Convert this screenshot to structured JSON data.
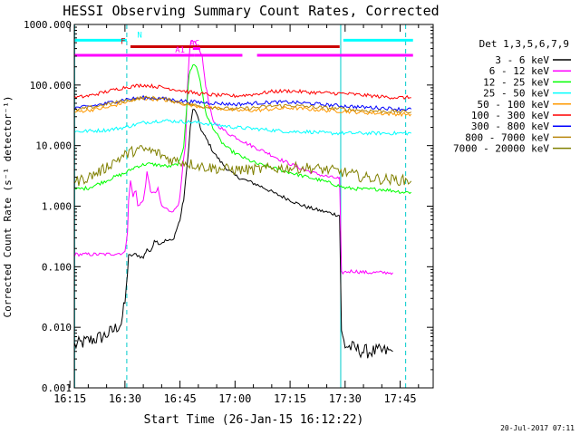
{
  "chart_data": {
    "type": "line",
    "title": "HESSI Observing Summary Count Rates, Corrected",
    "xlabel": "Start Time (26-Jan-15 16:12:22)",
    "ylabel": "Corrected Count Rate (s⁻¹ detector⁻¹)",
    "yscale": "log",
    "xlim_minutes": [
      16.2,
      114.0
    ],
    "ylim": [
      0.001,
      1000.0
    ],
    "x_ticks": [
      {
        "label": "16:15",
        "min": 15
      },
      {
        "label": "16:30",
        "min": 30
      },
      {
        "label": "16:45",
        "min": 45
      },
      {
        "label": "17:00",
        "min": 60
      },
      {
        "label": "17:15",
        "min": 75
      },
      {
        "label": "17:30",
        "min": 90
      },
      {
        "label": "17:45",
        "min": 105
      }
    ],
    "y_ticks": [
      {
        "label": "1000.000",
        "value": 1000
      },
      {
        "label": "100.000",
        "value": 100
      },
      {
        "label": "10.000",
        "value": 10
      },
      {
        "label": "1.000",
        "value": 1
      },
      {
        "label": "0.100",
        "value": 0.1
      },
      {
        "label": "0.010",
        "value": 0.01
      },
      {
        "label": "0.001",
        "value": 0.001
      }
    ],
    "legend_title": "Det 1,3,5,6,7,9",
    "legend_position": "right",
    "series": [
      {
        "name": "3 - 6 keV",
        "color": "#000000",
        "points": [
          [
            16.3,
            0.005
          ],
          [
            20,
            0.006
          ],
          [
            24,
            0.007
          ],
          [
            27,
            0.009
          ],
          [
            29,
            0.012
          ],
          [
            30,
            0.025
          ],
          [
            30.7,
            0.08
          ],
          [
            31,
            0.15
          ],
          [
            33,
            0.16
          ],
          [
            35,
            0.14
          ],
          [
            36,
            0.2
          ],
          [
            37,
            0.17
          ],
          [
            38,
            0.28
          ],
          [
            39.5,
            0.24
          ],
          [
            41,
            0.27
          ],
          [
            43,
            0.27
          ],
          [
            44,
            0.4
          ],
          [
            45,
            0.6
          ],
          [
            46,
            1.3
          ],
          [
            47,
            5
          ],
          [
            47.8,
            20
          ],
          [
            48.5,
            40
          ],
          [
            49.5,
            35
          ],
          [
            50.5,
            20
          ],
          [
            51.5,
            15
          ],
          [
            52.5,
            12
          ],
          [
            54,
            8
          ],
          [
            56,
            5.5
          ],
          [
            58,
            4
          ],
          [
            60,
            3.2
          ],
          [
            62,
            2.8
          ],
          [
            65,
            2.4
          ],
          [
            68,
            2.0
          ],
          [
            71,
            1.6
          ],
          [
            74,
            1.35
          ],
          [
            77,
            1.1
          ],
          [
            80,
            0.95
          ],
          [
            83,
            0.85
          ],
          [
            86,
            0.77
          ],
          [
            88.5,
            0.7
          ],
          [
            89,
            0.008
          ],
          [
            90,
            0.005
          ],
          [
            95,
            0.004
          ],
          [
            100,
            0.004
          ],
          [
            103,
            0.004
          ]
        ]
      },
      {
        "name": "6 - 12 keV",
        "color": "#ff00ff",
        "points": [
          [
            16.3,
            0.16
          ],
          [
            25,
            0.16
          ],
          [
            30,
            0.17
          ],
          [
            30.7,
            0.4
          ],
          [
            31,
            1.2
          ],
          [
            31.5,
            2.6
          ],
          [
            32.2,
            1.5
          ],
          [
            33,
            1.8
          ],
          [
            33.5,
            1.0
          ],
          [
            34,
            1.1
          ],
          [
            35,
            1.2
          ],
          [
            36,
            3.5
          ],
          [
            37,
            1.8
          ],
          [
            38,
            1.6
          ],
          [
            39,
            1.9
          ],
          [
            40,
            1.0
          ],
          [
            42,
            0.85
          ],
          [
            43.5,
            0.85
          ],
          [
            44.5,
            1.1
          ],
          [
            45,
            1.4
          ],
          [
            45.5,
            3
          ],
          [
            46,
            6
          ],
          [
            46.5,
            10
          ],
          [
            47,
            80
          ],
          [
            47.5,
            300
          ],
          [
            48,
            550
          ],
          [
            49,
            500
          ],
          [
            50,
            450
          ],
          [
            51,
            300
          ],
          [
            52,
            100
          ],
          [
            53,
            45
          ],
          [
            54,
            25
          ],
          [
            56,
            20
          ],
          [
            58,
            16
          ],
          [
            60,
            14
          ],
          [
            63,
            11
          ],
          [
            66,
            9
          ],
          [
            69,
            7.5
          ],
          [
            72,
            6
          ],
          [
            75,
            5
          ],
          [
            78,
            4.2
          ],
          [
            81,
            3.6
          ],
          [
            84,
            3.2
          ],
          [
            86,
            3.0
          ],
          [
            88,
            2.9
          ],
          [
            88.5,
            2.8
          ],
          [
            89,
            0.08
          ],
          [
            92,
            0.085
          ],
          [
            96,
            0.08
          ],
          [
            100,
            0.08
          ],
          [
            103,
            0.08
          ]
        ]
      },
      {
        "name": "12 - 25 keV",
        "color": "#00ff00",
        "points": [
          [
            16.3,
            1.9
          ],
          [
            20,
            2.0
          ],
          [
            24,
            2.5
          ],
          [
            27,
            3.0
          ],
          [
            30,
            3.5
          ],
          [
            33,
            4.5
          ],
          [
            36,
            5
          ],
          [
            39,
            4.8
          ],
          [
            42,
            4.5
          ],
          [
            44,
            4.8
          ],
          [
            45,
            5.5
          ],
          [
            46,
            10
          ],
          [
            47,
            60
          ],
          [
            47.5,
            150
          ],
          [
            48.5,
            220
          ],
          [
            49.5,
            200
          ],
          [
            50.5,
            120
          ],
          [
            51.5,
            50
          ],
          [
            52.5,
            28
          ],
          [
            54,
            20
          ],
          [
            56,
            12
          ],
          [
            58,
            9
          ],
          [
            60,
            7.5
          ],
          [
            63,
            6
          ],
          [
            66,
            5
          ],
          [
            69,
            4.5
          ],
          [
            72,
            4
          ],
          [
            75,
            3.6
          ],
          [
            78,
            3.2
          ],
          [
            81,
            2.9
          ],
          [
            84,
            2.6
          ],
          [
            87,
            2.3
          ],
          [
            90,
            2.0
          ],
          [
            95,
            1.9
          ],
          [
            100,
            1.9
          ],
          [
            103,
            1.8
          ],
          [
            106,
            1.7
          ],
          [
            108,
            1.7
          ]
        ]
      },
      {
        "name": "25 - 50 keV",
        "color": "#00ffff",
        "points": [
          [
            16.3,
            17
          ],
          [
            25,
            18
          ],
          [
            30,
            20
          ],
          [
            35,
            24
          ],
          [
            40,
            26
          ],
          [
            45,
            25
          ],
          [
            50,
            24
          ],
          [
            55,
            22
          ],
          [
            60,
            20
          ],
          [
            65,
            19
          ],
          [
            70,
            18
          ],
          [
            75,
            17
          ],
          [
            80,
            17
          ],
          [
            85,
            16
          ],
          [
            90,
            16
          ],
          [
            95,
            16
          ],
          [
            100,
            16
          ],
          [
            105,
            16
          ],
          [
            108,
            16
          ]
        ]
      },
      {
        "name": "50 - 100 keV",
        "color": "#ff9900",
        "points": [
          [
            16.3,
            36
          ],
          [
            25,
            42
          ],
          [
            30,
            52
          ],
          [
            35,
            60
          ],
          [
            40,
            58
          ],
          [
            45,
            50
          ],
          [
            50,
            45
          ],
          [
            55,
            42
          ],
          [
            60,
            38
          ],
          [
            65,
            38
          ],
          [
            70,
            40
          ],
          [
            75,
            42
          ],
          [
            80,
            40
          ],
          [
            85,
            38
          ],
          [
            90,
            37
          ],
          [
            95,
            35
          ],
          [
            100,
            34
          ],
          [
            105,
            33
          ],
          [
            108,
            33
          ]
        ]
      },
      {
        "name": "100 - 300 keV",
        "color": "#ff0000",
        "points": [
          [
            16.3,
            62
          ],
          [
            20,
            66
          ],
          [
            25,
            78
          ],
          [
            30,
            92
          ],
          [
            35,
            100
          ],
          [
            40,
            92
          ],
          [
            45,
            82
          ],
          [
            50,
            72
          ],
          [
            55,
            68
          ],
          [
            60,
            66
          ],
          [
            65,
            70
          ],
          [
            70,
            78
          ],
          [
            75,
            80
          ],
          [
            80,
            76
          ],
          [
            85,
            74
          ],
          [
            90,
            72
          ],
          [
            95,
            68
          ],
          [
            100,
            64
          ],
          [
            105,
            62
          ],
          [
            108,
            62
          ]
        ]
      },
      {
        "name": "300 - 800 keV",
        "color": "#0000ff",
        "points": [
          [
            16.3,
            42
          ],
          [
            20,
            44
          ],
          [
            25,
            50
          ],
          [
            30,
            58
          ],
          [
            35,
            62
          ],
          [
            40,
            60
          ],
          [
            45,
            55
          ],
          [
            50,
            52
          ],
          [
            55,
            50
          ],
          [
            60,
            48
          ],
          [
            65,
            50
          ],
          [
            70,
            52
          ],
          [
            75,
            52
          ],
          [
            80,
            50
          ],
          [
            85,
            47
          ],
          [
            90,
            45
          ],
          [
            95,
            43
          ],
          [
            100,
            42
          ],
          [
            105,
            40
          ],
          [
            108,
            40
          ]
        ]
      },
      {
        "name": "800 - 7000 keV",
        "color": "#b8860b",
        "points": [
          [
            16.3,
            38
          ],
          [
            20,
            42
          ],
          [
            25,
            48
          ],
          [
            30,
            55
          ],
          [
            35,
            62
          ],
          [
            40,
            60
          ],
          [
            45,
            52
          ],
          [
            50,
            45
          ],
          [
            55,
            42
          ],
          [
            60,
            40
          ],
          [
            65,
            42
          ],
          [
            70,
            45
          ],
          [
            75,
            46
          ],
          [
            80,
            44
          ],
          [
            85,
            42
          ],
          [
            90,
            40
          ],
          [
            95,
            38
          ],
          [
            100,
            37
          ],
          [
            105,
            36
          ],
          [
            108,
            36
          ]
        ]
      },
      {
        "name": "7000 - 20000 keV",
        "color": "#808000",
        "points": [
          [
            16.3,
            2.5
          ],
          [
            20,
            3.0
          ],
          [
            24,
            4.0
          ],
          [
            27,
            5.5
          ],
          [
            30,
            7.0
          ],
          [
            33,
            8.5
          ],
          [
            36,
            8.5
          ],
          [
            39,
            7.5
          ],
          [
            42,
            6.0
          ],
          [
            45,
            5.5
          ],
          [
            48,
            5.0
          ],
          [
            51,
            4.5
          ],
          [
            55,
            4.2
          ],
          [
            60,
            4.0
          ],
          [
            65,
            4.0
          ],
          [
            70,
            4.2
          ],
          [
            75,
            4.3
          ],
          [
            80,
            4.3
          ],
          [
            85,
            4.0
          ],
          [
            90,
            3.6
          ],
          [
            95,
            3.0
          ],
          [
            100,
            2.8
          ],
          [
            105,
            2.7
          ],
          [
            108,
            2.6
          ]
        ]
      }
    ],
    "flag_bars": [
      {
        "label": "N",
        "color": "#00ffff",
        "value": 550,
        "segments": [
          [
            16.3,
            30.5
          ],
          [
            89.5,
            108.5
          ]
        ],
        "label_min": 34
      },
      {
        "label": "F",
        "color": "#cc0000",
        "value": 430,
        "segments": [
          [
            31.5,
            88.5
          ]
        ],
        "label_min": 29.5
      },
      {
        "label": "AC",
        "color": "#ff00ff",
        "value": 400,
        "segments": [
          [
            48.5,
            50.5
          ]
        ],
        "label_min": 49
      },
      {
        "label": "A1",
        "color": "#ff00ff",
        "value": 310,
        "segments": [
          [
            16.3,
            49
          ],
          [
            49,
            62
          ],
          [
            66,
            108.5
          ]
        ],
        "label_min": 45
      }
    ],
    "dashed_markers_min": [
      30.5,
      106.5
    ],
    "solid_markers_min": [
      16.3,
      88.8
    ]
  },
  "footer": {
    "timestamp": "20-Jul-2017 07:11"
  }
}
